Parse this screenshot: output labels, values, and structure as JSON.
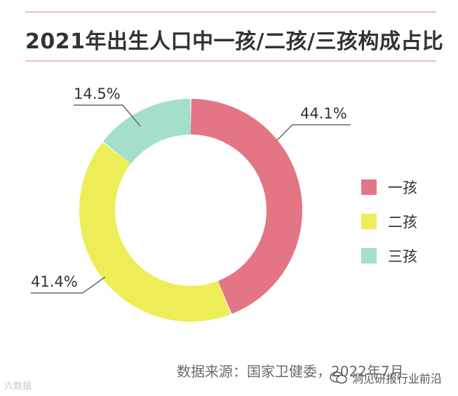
{
  "title": "2021年出生人口中一孩/二孩/三孩构成占比",
  "source": "数据来源：国家卫健委，2022年7月",
  "watermark_left": "六数据",
  "watermark_right": "洞见研报行业前沿",
  "chart_data": {
    "type": "pie",
    "style": "donut",
    "categories": [
      "一孩",
      "二孩",
      "三孩"
    ],
    "values": [
      44.1,
      41.4,
      14.5
    ],
    "value_labels": [
      "44.1%",
      "41.4%",
      "14.5%"
    ],
    "colors": [
      "#e47585",
      "#eded57",
      "#a3dfc9"
    ],
    "legend_placement": "right"
  }
}
